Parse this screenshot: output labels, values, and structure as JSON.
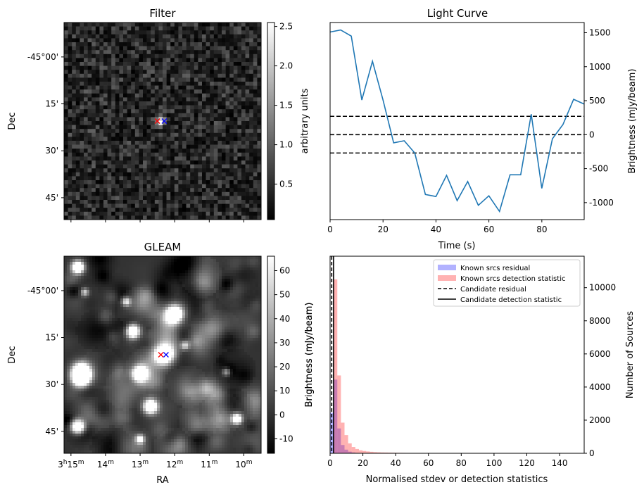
{
  "chart_data": [
    {
      "panel": "filter",
      "type": "heatmap",
      "title": "Filter",
      "xlabel": "",
      "ylabel": "Dec",
      "ytick_labels": [
        "-45°00'",
        "15'",
        "30'",
        "45'"
      ],
      "ytick_values": [
        0,
        15,
        30,
        45
      ],
      "ylim": [
        -11,
        52
      ],
      "grid": false,
      "colorbar": {
        "label": "arbitrary units",
        "ticks": [
          "0.5",
          "1.0",
          "1.5",
          "2.0",
          "2.5"
        ],
        "tick_values": [
          0.5,
          1.0,
          1.5,
          2.0,
          2.5
        ],
        "range": [
          0.05,
          2.55
        ],
        "colormap": "gray"
      },
      "source": {
        "x": 12.4,
        "y": 20.5,
        "peak": 2.5
      },
      "markers": [
        {
          "x": 12.5,
          "y": 20.5,
          "color": "#ff0000",
          "symbol": "x"
        },
        {
          "x": 12.3,
          "y": 20.5,
          "color": "#0000ff",
          "symbol": "x"
        }
      ]
    },
    {
      "panel": "light-curve",
      "type": "line",
      "title": "Light Curve",
      "xlabel": "Time (s)",
      "ylabel": "Brightness (mJy/beam)",
      "xlim": [
        0,
        96
      ],
      "ylim": [
        -1250,
        1650
      ],
      "xtick_labels": [
        "0",
        "20",
        "40",
        "60",
        "80"
      ],
      "xtick_values": [
        0,
        20,
        40,
        60,
        80
      ],
      "ytick_labels": [
        "-1000",
        "-500",
        "0",
        "500",
        "1000",
        "1500"
      ],
      "ytick_values": [
        -1000,
        -500,
        0,
        500,
        1000,
        1500
      ],
      "grid": false,
      "line_color": "#1f77b4",
      "x": [
        0,
        4,
        8,
        12,
        16,
        20,
        24,
        28,
        32,
        36,
        40,
        44,
        48,
        52,
        56,
        60,
        64,
        68,
        72,
        76,
        80,
        84,
        88,
        92,
        96
      ],
      "y": [
        1510,
        1540,
        1450,
        510,
        1080,
        510,
        -120,
        -90,
        -270,
        -880,
        -910,
        -600,
        -970,
        -690,
        -1040,
        -900,
        -1130,
        -590,
        -590,
        300,
        -790,
        -60,
        150,
        520,
        450
      ],
      "hlines": [
        {
          "y": 270,
          "style": "dashed",
          "color": "#000000"
        },
        {
          "y": 0,
          "style": "dashed",
          "color": "#000000"
        },
        {
          "y": -270,
          "style": "dashed",
          "color": "#000000"
        }
      ]
    },
    {
      "panel": "gleam",
      "type": "heatmap",
      "title": "GLEAM",
      "xlabel": "RA",
      "ylabel": "Dec",
      "xtick_labels": [
        {
          "main": "3",
          "sup1": "h",
          "mid": "15",
          "sup2": "m"
        },
        {
          "main": "",
          "sup1": "",
          "mid": "14",
          "sup2": "m"
        },
        {
          "main": "",
          "sup1": "",
          "mid": "13",
          "sup2": "m"
        },
        {
          "main": "",
          "sup1": "",
          "mid": "12",
          "sup2": "m"
        },
        {
          "main": "",
          "sup1": "",
          "mid": "11",
          "sup2": "m"
        },
        {
          "main": "",
          "sup1": "",
          "mid": "10",
          "sup2": "m"
        }
      ],
      "xtick_values": [
        15,
        14,
        13,
        12,
        11,
        10
      ],
      "xlim": [
        15.2,
        9.5
      ],
      "ytick_labels": [
        "-45°00'",
        "15'",
        "30'",
        "45'"
      ],
      "ytick_values": [
        0,
        15,
        30,
        45
      ],
      "ylim": [
        -11,
        52
      ],
      "grid": false,
      "colorbar": {
        "label": "Brightness (mJy/beam)",
        "ticks": [
          "-10",
          "0",
          "10",
          "20",
          "30",
          "40",
          "50",
          "60"
        ],
        "tick_values": [
          -10,
          0,
          10,
          20,
          30,
          40,
          50,
          60
        ],
        "range": [
          -16,
          66
        ],
        "colormap": "gray"
      },
      "sources": [
        {
          "x": 14.8,
          "y": -7.5,
          "r": 1.4,
          "b": 1.0
        },
        {
          "x": 12.0,
          "y": 7.5,
          "r": 1.8,
          "b": 1.0
        },
        {
          "x": 13.2,
          "y": 13.0,
          "r": 1.5,
          "b": 1.0
        },
        {
          "x": 12.3,
          "y": 20.5,
          "r": 2.2,
          "b": 1.0
        },
        {
          "x": 13.0,
          "y": 26.5,
          "r": 1.6,
          "b": 1.0
        },
        {
          "x": 14.7,
          "y": 26.0,
          "r": 2.0,
          "b": 1.0
        },
        {
          "x": 14.7,
          "y": 28.0,
          "r": 2.0,
          "b": 1.0
        },
        {
          "x": 12.7,
          "y": 37.0,
          "r": 1.6,
          "b": 1.0
        },
        {
          "x": 14.8,
          "y": 43.5,
          "r": 1.5,
          "b": 1.0
        },
        {
          "x": 10.2,
          "y": 41.0,
          "r": 1.2,
          "b": 0.85
        },
        {
          "x": 13.4,
          "y": 3.5,
          "r": 1.0,
          "b": 0.55
        },
        {
          "x": 10.5,
          "y": 26.0,
          "r": 1.0,
          "b": 0.5
        },
        {
          "x": 11.7,
          "y": 17.5,
          "r": 1.0,
          "b": 0.45
        },
        {
          "x": 13.0,
          "y": 47.5,
          "r": 1.0,
          "b": 0.6
        },
        {
          "x": 14.6,
          "y": 0.5,
          "r": 0.9,
          "b": 0.45
        }
      ],
      "markers": [
        {
          "x": 12.4,
          "y": 20.5,
          "color": "#ff0000",
          "symbol": "x"
        },
        {
          "x": 12.25,
          "y": 20.5,
          "color": "#0000ff",
          "symbol": "x"
        }
      ]
    },
    {
      "panel": "histogram",
      "type": "bar",
      "title": "",
      "xlabel": "Normalised stdev or detection statistics",
      "ylabel": "Brightness (mJy/beam)",
      "y2label": "Number of Sources",
      "xlim": [
        0,
        155
      ],
      "ylim": [
        0,
        11900
      ],
      "xtick_labels": [
        "0",
        "20",
        "40",
        "60",
        "80",
        "100",
        "120",
        "140"
      ],
      "xtick_values": [
        0,
        20,
        40,
        60,
        80,
        100,
        120,
        140
      ],
      "ytick_labels": [
        "0",
        "2000",
        "4000",
        "6000",
        "8000",
        "10000"
      ],
      "ytick_values": [
        0,
        2000,
        4000,
        6000,
        8000,
        10000
      ],
      "grid": false,
      "legend_position": "top-right",
      "bin_width": 2.2,
      "series": [
        {
          "name": "Known srcs residual",
          "color": "#0000ff",
          "opacity": 0.3,
          "bin_start": 0,
          "values": [
            2450,
            4450,
            1500,
            500,
            220,
            100,
            50,
            25,
            12,
            6,
            3
          ]
        },
        {
          "name": "Known srcs detection statistic",
          "color": "#ff0000",
          "opacity": 0.3,
          "bin_start": 0,
          "values": [
            0,
            10500,
            4700,
            1850,
            1100,
            600,
            380,
            260,
            180,
            140,
            110,
            90,
            70,
            60,
            50,
            45,
            40,
            35,
            30,
            28,
            25,
            22,
            20,
            18,
            16,
            14,
            12,
            11,
            10,
            9,
            8,
            7,
            7,
            6,
            6,
            5,
            5,
            4,
            4,
            4,
            3,
            3,
            3,
            3,
            2,
            2,
            2,
            2,
            2,
            2,
            2,
            2,
            2,
            2,
            2,
            2,
            2,
            2,
            2,
            2,
            2,
            2,
            2,
            2,
            2,
            2,
            2,
            2
          ]
        }
      ],
      "vlines": [
        {
          "name": "Candidate residual",
          "x": 1.0,
          "style": "dashed",
          "color": "#000000"
        },
        {
          "name": "Candidate detection statistic",
          "x": 2.1,
          "style": "solid",
          "color": "#000000"
        }
      ]
    }
  ]
}
